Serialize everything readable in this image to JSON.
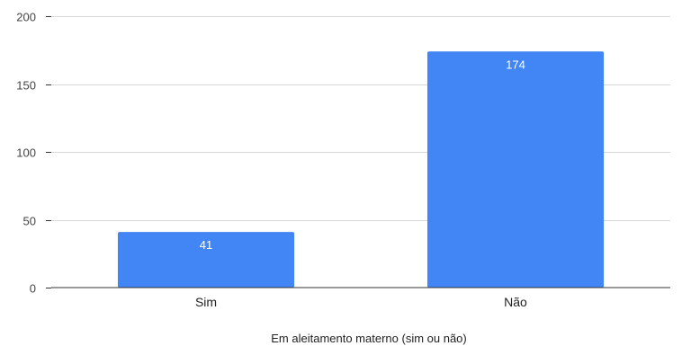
{
  "chart_data": {
    "type": "bar",
    "title": "",
    "xlabel": "Em aleitamento materno (sim ou não)",
    "ylabel": "",
    "categories": [
      "Sim",
      "Não"
    ],
    "series": [
      {
        "values": [
          41,
          174
        ],
        "color": "#4285f4"
      }
    ],
    "ylim": [
      0,
      200
    ],
    "yticks": [
      0,
      50,
      100,
      150,
      200
    ],
    "grid": true,
    "legend": "none",
    "data_labels": true
  }
}
